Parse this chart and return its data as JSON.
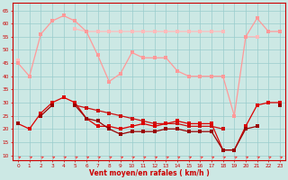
{
  "x": [
    0,
    1,
    2,
    3,
    4,
    5,
    6,
    7,
    8,
    9,
    10,
    11,
    12,
    13,
    14,
    15,
    16,
    17,
    18,
    19,
    20,
    21,
    22,
    23
  ],
  "line_rafales": [
    45,
    40,
    56,
    61,
    63,
    61,
    57,
    48,
    38,
    41,
    49,
    47,
    47,
    47,
    42,
    40,
    40,
    40,
    40,
    25,
    55,
    62,
    57,
    57
  ],
  "line_rafales2": [
    46,
    null,
    56,
    null,
    null,
    58,
    57,
    57,
    57,
    57,
    57,
    57,
    57,
    57,
    57,
    57,
    57,
    57,
    57,
    null,
    55,
    55,
    null,
    57
  ],
  "line_moyen1": [
    22,
    20,
    26,
    30,
    32,
    30,
    24,
    21,
    21,
    20,
    21,
    22,
    21,
    22,
    23,
    22,
    22,
    22,
    12,
    12,
    21,
    29,
    30,
    30
  ],
  "line_moyen2": [
    22,
    null,
    25,
    29,
    null,
    29,
    24,
    23,
    20,
    18,
    19,
    19,
    19,
    20,
    20,
    19,
    19,
    19,
    12,
    12,
    20,
    21,
    null,
    29
  ],
  "line_moyen3": [
    22,
    null,
    null,
    null,
    null,
    29,
    28,
    27,
    26,
    25,
    24,
    23,
    22,
    22,
    22,
    21,
    21,
    21,
    20,
    null,
    null,
    21,
    null,
    29
  ],
  "xlabel": "Vent moyen/en rafales ( km/h )",
  "ylabel_ticks": [
    10,
    15,
    20,
    25,
    30,
    35,
    40,
    45,
    50,
    55,
    60,
    65
  ],
  "ylim": [
    8,
    68
  ],
  "xlim": [
    -0.5,
    23.5
  ],
  "bg_color": "#cce8e4",
  "grid_color": "#99cccc",
  "line_rafales_color": "#ff9999",
  "line_rafales2_color": "#ffbbbb",
  "line_moyen1_color": "#dd0000",
  "line_moyen2_color": "#990000",
  "line_moyen3_color": "#cc1111",
  "arrow_color": "#ff3333",
  "xlabel_color": "#cc0000"
}
